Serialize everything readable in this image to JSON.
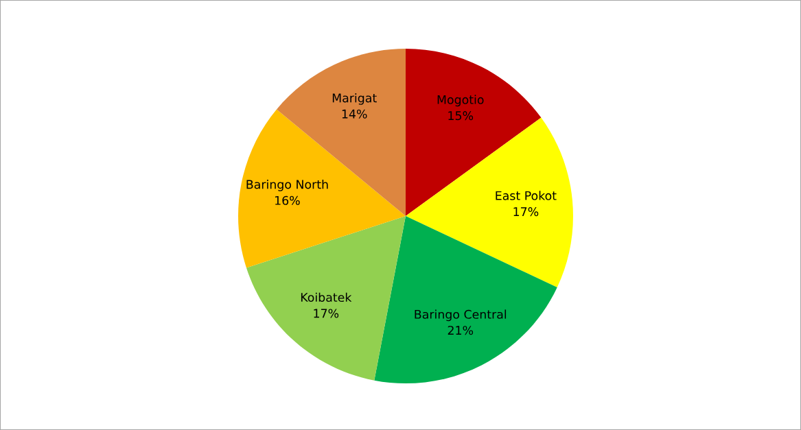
{
  "chart_data": {
    "type": "pie",
    "categories": [
      "Mogotio",
      "East Pokot",
      "Baringo Central",
      "Koibatek",
      "Baringo North",
      "Marigat"
    ],
    "values": [
      15,
      17,
      21,
      17,
      16,
      14
    ],
    "value_labels": [
      "15%",
      "17%",
      "21%",
      "17%",
      "16%",
      "14%"
    ],
    "colors": [
      "#c00000",
      "#ffff00",
      "#00b050",
      "#92d050",
      "#ffc000",
      "#dd8640"
    ],
    "legend": false
  }
}
